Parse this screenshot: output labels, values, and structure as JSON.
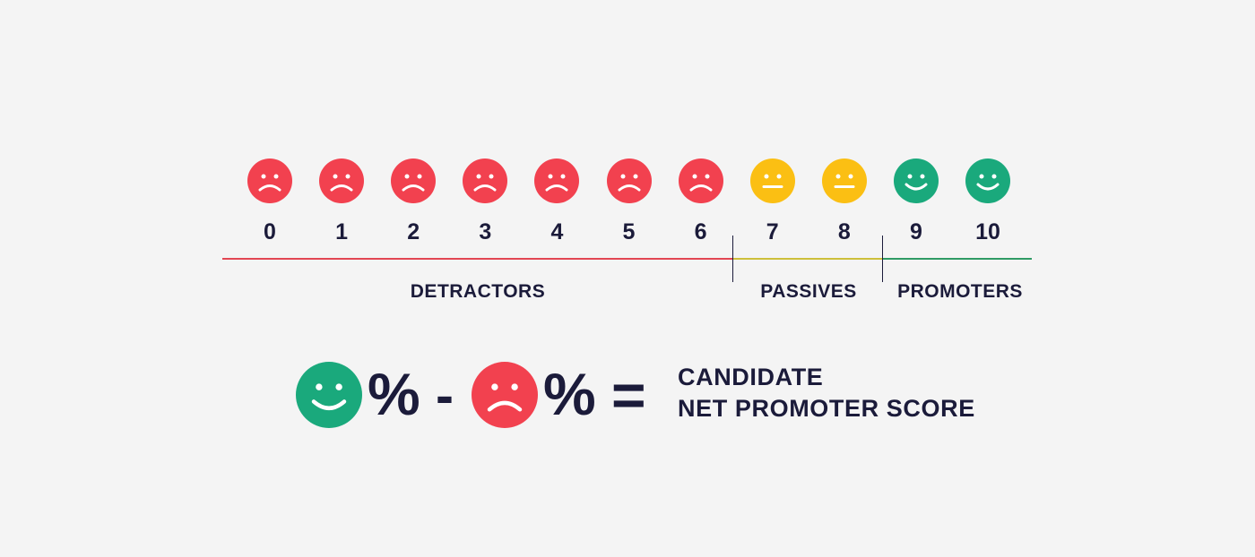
{
  "colors": {
    "background": "#f4f4f4",
    "detractor": "#f2414f",
    "passive": "#fbbf13",
    "promoter": "#1aa97c",
    "text": "#1b1b3a",
    "detractor_line": "#e24652",
    "passive_line": "#cdbf3a",
    "promoter_line": "#2f9a64"
  },
  "scale": {
    "scores": [
      {
        "label": "0",
        "mood": "sad",
        "icon": "sad-face-icon"
      },
      {
        "label": "1",
        "mood": "sad",
        "icon": "sad-face-icon"
      },
      {
        "label": "2",
        "mood": "sad",
        "icon": "sad-face-icon"
      },
      {
        "label": "3",
        "mood": "sad",
        "icon": "sad-face-icon"
      },
      {
        "label": "4",
        "mood": "sad",
        "icon": "sad-face-icon"
      },
      {
        "label": "5",
        "mood": "sad",
        "icon": "sad-face-icon"
      },
      {
        "label": "6",
        "mood": "sad",
        "icon": "sad-face-icon"
      },
      {
        "label": "7",
        "mood": "neutral",
        "icon": "neutral-face-icon"
      },
      {
        "label": "8",
        "mood": "neutral",
        "icon": "neutral-face-icon"
      },
      {
        "label": "9",
        "mood": "happy",
        "icon": "happy-face-icon"
      },
      {
        "label": "10",
        "mood": "happy",
        "icon": "happy-face-icon"
      }
    ],
    "groups": {
      "detractors": "DETRACTORS",
      "passives": "PASSIVES",
      "promoters": "PROMOTERS"
    }
  },
  "formula": {
    "percent_1": "%",
    "minus": "-",
    "percent_2": "%",
    "equals": "=",
    "result_line_1": "CANDIDATE",
    "result_line_2": "NET PROMOTER SCORE",
    "left_icon": "happy-face-icon",
    "right_icon": "sad-face-icon"
  }
}
